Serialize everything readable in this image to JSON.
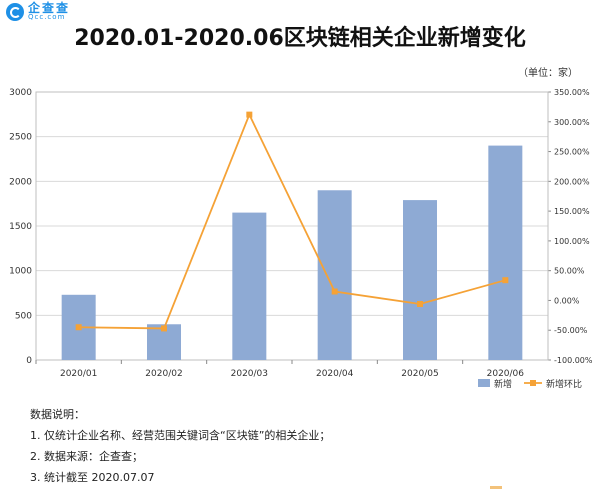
{
  "logo": {
    "name_cn": "企查查",
    "name_en": "Qcc.com"
  },
  "unit_label": "（单位：家）",
  "notes": {
    "heading": "数据说明：",
    "items": [
      "1. 仅统计企业名称、经营范围关键词含“区块链”的相关企业；",
      "2. 数据来源：企查查；",
      "3. 统计截至 2020.07.07"
    ]
  },
  "colors": {
    "bar": "#8eaad4",
    "line": "#f5a236",
    "grid": "#d9d9d9",
    "axis": "#888888"
  },
  "chart_data": {
    "type": "bar",
    "title": "2020.01-2020.06区块链相关企业新增变化",
    "categories": [
      "2020/01",
      "2020/02",
      "2020/03",
      "2020/04",
      "2020/05",
      "2020/06"
    ],
    "series": [
      {
        "name": "新增",
        "type": "bar",
        "axis": "left",
        "values": [
          730,
          400,
          1650,
          1900,
          1790,
          2400
        ]
      },
      {
        "name": "新增环比",
        "type": "line",
        "axis": "right",
        "unit": "%",
        "values": [
          -45,
          -47,
          312,
          15,
          -6,
          34
        ]
      }
    ],
    "y_left": {
      "lim": [
        0,
        3000
      ],
      "ticks": [
        0,
        500,
        1000,
        1500,
        2000,
        2500,
        3000
      ]
    },
    "y_right": {
      "lim": [
        -100,
        350
      ],
      "ticks": [
        -100,
        -50,
        0,
        50,
        100,
        150,
        200,
        250,
        300,
        350
      ],
      "tick_labels": [
        "-100.00%",
        "-50.00%",
        "0.00%",
        "50.00%",
        "100.00%",
        "150.00%",
        "200.00%",
        "250.00%",
        "300.00%",
        "350.00%"
      ]
    },
    "grid": true,
    "legend_position": "bottom-right"
  }
}
